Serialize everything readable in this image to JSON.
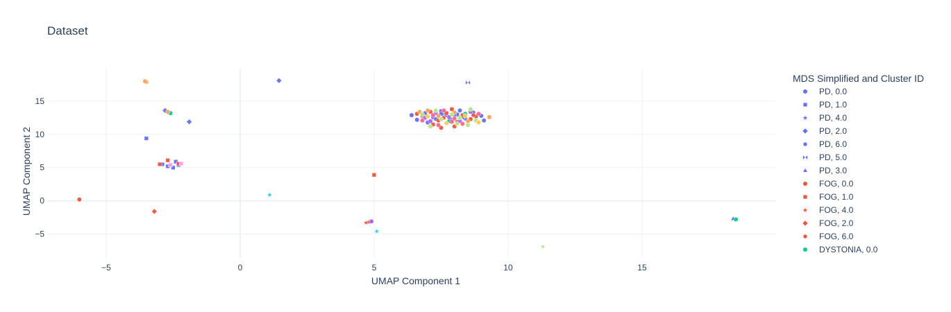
{
  "chart_data": {
    "type": "scatter",
    "title": "Dataset",
    "xlabel": "UMAP Component 1",
    "ylabel": "UMAP Component 2",
    "xlim": [
      -7.2,
      20
    ],
    "ylim": [
      -8.6,
      19.8
    ],
    "xticks": [
      -5,
      0,
      5,
      10,
      15
    ],
    "yticks": [
      -5,
      0,
      5,
      10,
      15
    ],
    "grid": true,
    "legend_title": "MDS Simplified and Cluster ID",
    "legend_position": "right",
    "series": [
      {
        "name": "PD, 0.0",
        "color": "#636efa",
        "symbol": "circle",
        "points": [
          [
            6.4,
            12.9
          ],
          [
            6.6,
            12.2
          ],
          [
            6.9,
            13.2
          ],
          [
            7.2,
            12.6
          ],
          [
            7.5,
            13.5
          ],
          [
            7.8,
            12.0
          ],
          [
            8.1,
            13.0
          ],
          [
            8.4,
            12.4
          ],
          [
            8.7,
            13.3
          ],
          [
            9.0,
            12.8
          ],
          [
            9.1,
            12.1
          ],
          [
            7.0,
            11.8
          ],
          [
            7.6,
            12.9
          ],
          [
            8.2,
            13.6
          ]
        ]
      },
      {
        "name": "PD, 1.0",
        "color": "#636efa",
        "symbol": "square",
        "points": [
          [
            -3.5,
            9.4
          ],
          [
            -2.9,
            5.5
          ],
          [
            -2.7,
            5.2
          ],
          [
            -2.4,
            5.9
          ],
          [
            -2.3,
            5.4
          ],
          [
            -2.5,
            5.0
          ],
          [
            7.5,
            13.1
          ],
          [
            8.3,
            12.6
          ],
          [
            7.9,
            12.2
          ]
        ]
      },
      {
        "name": "PD, 4.0",
        "color": "#636efa",
        "symbol": "star",
        "points": [
          [
            4.9,
            -3.1
          ],
          [
            7.7,
            12.8
          ]
        ]
      },
      {
        "name": "PD, 2.0",
        "color": "#636efa",
        "symbol": "diamond",
        "points": [
          [
            1.45,
            18.1
          ],
          [
            -2.8,
            13.6
          ],
          [
            -1.9,
            11.9
          ]
        ]
      },
      {
        "name": "PD, 6.0",
        "color": "#636efa",
        "symbol": "hexagon",
        "points": [
          [
            7.3,
            12.3
          ],
          [
            8.0,
            12.9
          ]
        ]
      },
      {
        "name": "PD, 5.0",
        "color": "#636efa",
        "symbol": "bowtie",
        "points": [
          [
            8.5,
            17.8
          ]
        ]
      },
      {
        "name": "PD, 3.0",
        "color": "#636efa",
        "symbol": "triangle-up",
        "points": [
          [
            18.4,
            -2.7
          ]
        ]
      },
      {
        "name": "FOG, 0.0",
        "color": "#ef553b",
        "symbol": "circle",
        "points": [
          [
            -6.0,
            0.2
          ],
          [
            6.8,
            12.8
          ],
          [
            7.1,
            13.4
          ],
          [
            7.4,
            12.1
          ],
          [
            7.7,
            13.2
          ],
          [
            8.0,
            11.2
          ],
          [
            8.3,
            12.9
          ],
          [
            8.6,
            12.3
          ],
          [
            7.2,
            11.5
          ],
          [
            6.6,
            13.1
          ],
          [
            7.9,
            13.8
          ],
          [
            8.8,
            12.7
          ],
          [
            7.5,
            11.0
          ]
        ]
      },
      {
        "name": "FOG, 1.0",
        "color": "#ef553b",
        "symbol": "square",
        "points": [
          [
            5.0,
            3.9
          ],
          [
            -2.7,
            6.1
          ],
          [
            -2.3,
            5.6
          ],
          [
            -3.0,
            5.5
          ]
        ]
      },
      {
        "name": "FOG, 4.0",
        "color": "#ef553b",
        "symbol": "star",
        "points": [
          [
            4.7,
            -3.3
          ],
          [
            4.8,
            -3.2
          ]
        ]
      },
      {
        "name": "FOG, 2.0",
        "color": "#ef553b",
        "symbol": "diamond",
        "points": [
          [
            -3.2,
            -1.6
          ]
        ]
      },
      {
        "name": "FOG, 6.0",
        "color": "#ef553b",
        "symbol": "hexagon",
        "points": [
          [
            7.6,
            12.5
          ],
          [
            8.1,
            11.9
          ],
          [
            8.7,
            12.9
          ]
        ]
      },
      {
        "name": "DYSTONIA, 0.0",
        "color": "#00cc96",
        "symbol": "circle",
        "points": [
          [
            -2.6,
            13.2
          ],
          [
            18.5,
            -2.8
          ],
          [
            7.8,
            12.0
          ],
          [
            8.4,
            13.1
          ]
        ]
      },
      {
        "name": "",
        "color": "#ab63fa",
        "symbol": "circle",
        "points": [
          [
            6.9,
            12.5
          ],
          [
            7.3,
            13.2
          ],
          [
            7.8,
            12.6
          ],
          [
            8.2,
            12.0
          ],
          [
            8.6,
            13.4
          ],
          [
            7.1,
            12.0
          ],
          [
            4.9,
            -3.1
          ]
        ]
      },
      {
        "name": "",
        "color": "#ffa15a",
        "symbol": "circle",
        "points": [
          [
            -3.5,
            17.9
          ],
          [
            -3.55,
            18.0
          ],
          [
            6.7,
            13.4
          ],
          [
            7.4,
            12.8
          ],
          [
            8.0,
            13.3
          ],
          [
            8.5,
            12.0
          ],
          [
            9.3,
            12.6
          ],
          [
            7.0,
            13.6
          ],
          [
            -2.7,
            13.4
          ]
        ]
      },
      {
        "name": "",
        "color": "#19d3f3",
        "symbol": "star",
        "points": [
          [
            1.1,
            0.9
          ],
          [
            5.1,
            -4.6
          ]
        ]
      },
      {
        "name": "",
        "color": "#ff6692",
        "symbol": "circle",
        "points": [
          [
            6.8,
            12.1
          ],
          [
            7.2,
            12.9
          ],
          [
            7.6,
            13.6
          ],
          [
            8.0,
            12.4
          ],
          [
            8.3,
            11.6
          ],
          [
            8.9,
            13.1
          ],
          [
            7.4,
            11.4
          ],
          [
            7.9,
            11.9
          ]
        ]
      },
      {
        "name": "",
        "color": "#b6e880",
        "symbol": "circle",
        "points": [
          [
            6.8,
            13.0
          ],
          [
            7.1,
            11.2
          ],
          [
            7.5,
            12.3
          ],
          [
            7.9,
            13.0
          ],
          [
            8.2,
            12.5
          ],
          [
            8.5,
            11.4
          ],
          [
            8.8,
            12.1
          ],
          [
            8.6,
            13.8
          ],
          [
            7.3,
            13.6
          ],
          [
            8.1,
            11.6
          ]
        ]
      },
      {
        "name": "",
        "color": "#b6e880",
        "symbol": "star",
        "points": [
          [
            11.3,
            -6.9
          ]
        ]
      },
      {
        "name": "",
        "color": "#ff97ff",
        "symbol": "square",
        "points": [
          [
            -2.6,
            5.4
          ],
          [
            -2.2,
            5.6
          ]
        ]
      },
      {
        "name": "",
        "color": "#fecb52",
        "symbol": "circle",
        "points": [
          [
            7.0,
            12.7
          ],
          [
            7.7,
            11.7
          ],
          [
            8.4,
            12.8
          ],
          [
            8.9,
            11.8
          ]
        ]
      }
    ]
  }
}
